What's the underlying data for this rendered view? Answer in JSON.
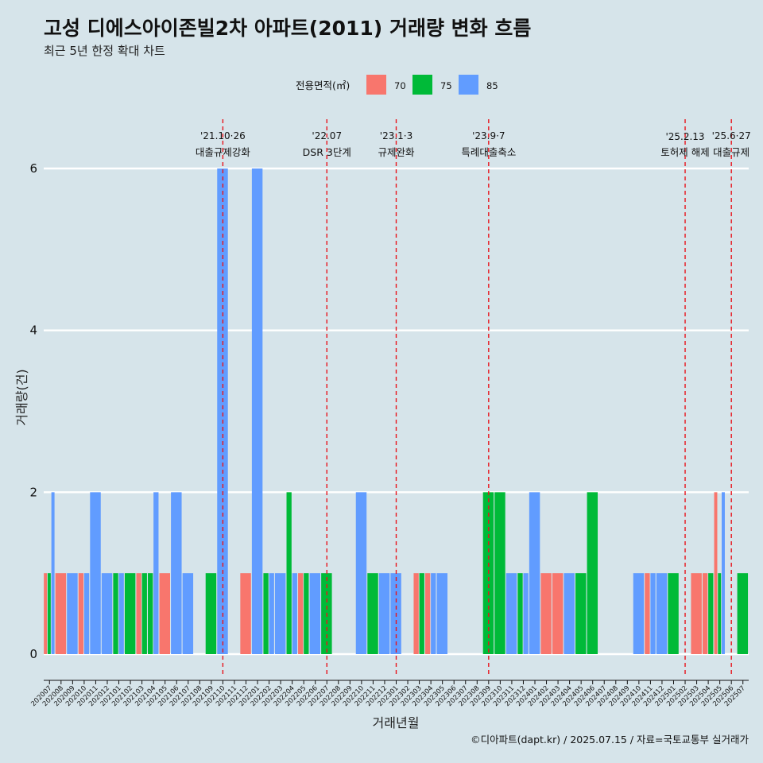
{
  "chart_data": {
    "type": "bar",
    "title": "고성 디에스아이존빌2차 아파트(2011) 거래량 변화 흐름",
    "subtitle": "최근 5년 한정 확대 차트",
    "xlabel": "거래년월",
    "ylabel": "거래량(건)",
    "ylim": [
      0,
      6.4
    ],
    "yticks": [
      0,
      2,
      4,
      6
    ],
    "grid": true,
    "legend": {
      "title": "전용면적(㎡)",
      "placement": "top",
      "entries": [
        {
          "name": "70",
          "color": "#f8766d"
        },
        {
          "name": "75",
          "color": "#00ba38"
        },
        {
          "name": "85",
          "color": "#619cff"
        }
      ]
    },
    "categories": [
      "202007",
      "202008",
      "202009",
      "202010",
      "202011",
      "202012",
      "202101",
      "202102",
      "202103",
      "202104",
      "202105",
      "202106",
      "202107",
      "202108",
      "202109",
      "202110",
      "202111",
      "202112",
      "202201",
      "202202",
      "202203",
      "202204",
      "202205",
      "202206",
      "202207",
      "202208",
      "202209",
      "202210",
      "202211",
      "202212",
      "202301",
      "202302",
      "202303",
      "202304",
      "202305",
      "202306",
      "202307",
      "202308",
      "202309",
      "202310",
      "202311",
      "202312",
      "202401",
      "202402",
      "202403",
      "202404",
      "202405",
      "202406",
      "202407",
      "202408",
      "202409",
      "202410",
      "202411",
      "202412",
      "202501",
      "202502",
      "202503",
      "202504",
      "202505",
      "202506",
      "202507"
    ],
    "series": [
      {
        "name": "70",
        "values": [
          1,
          1,
          0,
          1,
          0,
          0,
          0,
          0,
          1,
          0,
          1,
          0,
          0,
          0,
          0,
          0,
          0,
          1,
          0,
          0,
          0,
          0,
          1,
          0,
          0,
          0,
          0,
          0,
          0,
          0,
          0,
          0,
          1,
          1,
          0,
          0,
          0,
          0,
          0,
          0,
          0,
          0,
          0,
          1,
          1,
          0,
          0,
          0,
          0,
          0,
          0,
          0,
          1,
          0,
          0,
          0,
          1,
          1,
          2,
          0,
          0
        ]
      },
      {
        "name": "75",
        "values": [
          1,
          0,
          0,
          0,
          0,
          0,
          1,
          1,
          1,
          1,
          0,
          0,
          0,
          0,
          1,
          0,
          0,
          0,
          0,
          1,
          0,
          2,
          1,
          0,
          1,
          0,
          0,
          0,
          1,
          0,
          0,
          0,
          1,
          0,
          0,
          0,
          0,
          0,
          2,
          2,
          0,
          1,
          0,
          0,
          0,
          0,
          1,
          2,
          0,
          0,
          0,
          0,
          0,
          0,
          1,
          0,
          0,
          1,
          1,
          0,
          1
        ]
      },
      {
        "name": "85",
        "values": [
          2,
          0,
          1,
          1,
          2,
          1,
          1,
          0,
          0,
          2,
          0,
          2,
          1,
          0,
          0,
          6,
          0,
          0,
          6,
          1,
          1,
          1,
          0,
          1,
          0,
          0,
          0,
          2,
          0,
          1,
          1,
          0,
          0,
          1,
          1,
          0,
          0,
          0,
          0,
          0,
          1,
          1,
          2,
          0,
          0,
          1,
          0,
          0,
          0,
          0,
          0,
          1,
          1,
          1,
          0,
          0,
          0,
          0,
          2,
          0,
          0
        ]
      }
    ],
    "events": [
      {
        "category": "202110",
        "date": "'21.10·26",
        "label": "대출규제강화"
      },
      {
        "category": "202207",
        "date": "'22.07",
        "label": "DSR 3단계"
      },
      {
        "category": "202301",
        "date": "'23.1·3",
        "label": "규제완화"
      },
      {
        "category": "202309",
        "date": "'23.9·7",
        "label": "특례대출축소"
      },
      {
        "category": "202502",
        "date": "'25.2.13",
        "label": "토허제 해제"
      },
      {
        "category": "202506",
        "date": "'25.6·27",
        "label": "대출규제"
      }
    ],
    "caption": "©디아파트(dapt.kr) / 2025.07.15 / 자료=국토교통부 실거래가"
  },
  "colors": {
    "background": "#d6e4ea",
    "grid": "#ffffff",
    "event_line": "#e8141c"
  }
}
